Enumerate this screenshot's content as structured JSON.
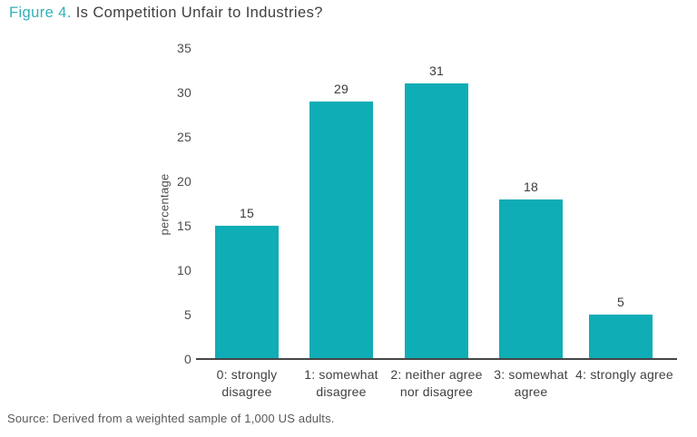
{
  "header": {
    "figure_label": "Figure 4.",
    "title_text": " Is Competition Unfair to Industries?"
  },
  "chart_data": {
    "type": "bar",
    "title": "Figure 4. Is Competition Unfair to Industries?",
    "categories": [
      "0: strongly disagree",
      "1: somewhat disagree",
      "2: neither agree nor disagree",
      "3: somewhat agree",
      "4: strongly agree"
    ],
    "category_lines": [
      [
        "0: strongly",
        "disagree"
      ],
      [
        "1: somewhat",
        "disagree"
      ],
      [
        "2: neither agree",
        "nor disagree"
      ],
      [
        "3: somewhat",
        "agree"
      ],
      [
        "4: strongly agree"
      ]
    ],
    "values": [
      15,
      29,
      31,
      18,
      5
    ],
    "bar_labels": [
      "15",
      "29",
      "31",
      "18",
      "5"
    ],
    "xlabel": "",
    "ylabel": "percentage",
    "ylim": [
      0,
      35
    ],
    "yticks": [
      0,
      5,
      10,
      15,
      20,
      25,
      30,
      35
    ],
    "grid": false,
    "legend": "none",
    "bar_color": "#0fadb5"
  },
  "footer": {
    "source_note": "Source: Derived from a weighted sample of 1,000 US adults."
  },
  "colors": {
    "accent_teal": "#0fadb5",
    "title_teal": "#31b0b9",
    "title_dark": "#3e3e40",
    "tick_gray": "#4d4d4f",
    "source_gray": "#58595b",
    "axis_line": "#454647"
  }
}
